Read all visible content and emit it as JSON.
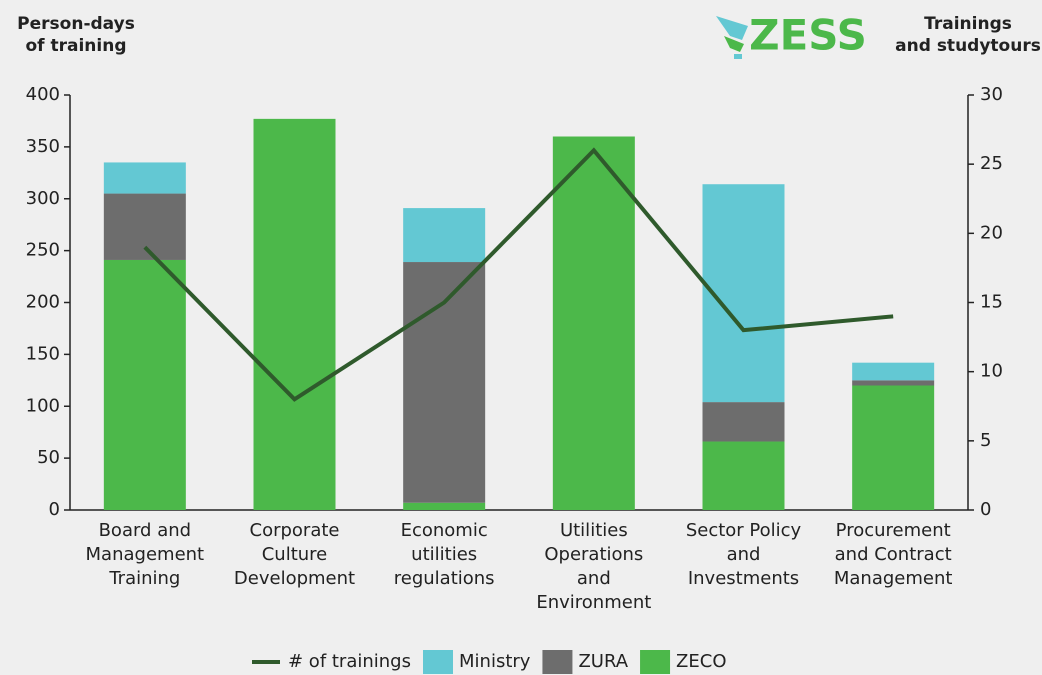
{
  "chart_data": {
    "type": "bar",
    "y_label": "Person-days\nof training",
    "y2_label": "Trainings\nand studytours",
    "logo": "ZESS",
    "categories": [
      "Board and\nManagement\nTraining",
      "Corporate\nCulture\nDevelopment",
      "Economic\nutilities\nregulations",
      "Utilities\nOperations\nand\nEnvironment",
      "Sector Policy\nand\nInvestments",
      "Procurement\nand Contract\nManagement"
    ],
    "series": [
      {
        "name": "# of trainings",
        "type": "line",
        "axis": "y2",
        "color": "#2f5a2c",
        "values": [
          19,
          8,
          15,
          26,
          13,
          14
        ]
      },
      {
        "name": "Ministry",
        "color": "#63c8d3",
        "values": [
          30,
          0,
          52,
          0,
          210,
          17
        ]
      },
      {
        "name": "ZURA",
        "color": "#6d6d6d",
        "values": [
          64,
          0,
          232,
          0,
          38,
          5
        ]
      },
      {
        "name": "ZECO",
        "color": "#4cb84a",
        "values": [
          241,
          377,
          7,
          360,
          66,
          120
        ]
      }
    ],
    "ylim": [
      0,
      400
    ],
    "yticks": [
      0,
      50,
      100,
      150,
      200,
      250,
      300,
      350,
      400
    ],
    "y2lim": [
      0,
      30
    ],
    "y2ticks": [
      0,
      5,
      10,
      15,
      20,
      25,
      30
    ],
    "legend": "bottom"
  }
}
